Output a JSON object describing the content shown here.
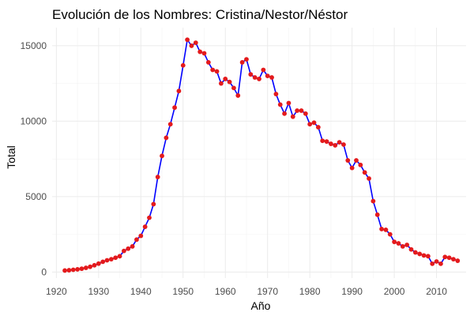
{
  "chart_data": {
    "type": "line",
    "title": "Evolución de los Nombres: Cristina/Nestor/Néstor",
    "xlabel": "Año",
    "ylabel": "Total",
    "xlim": [
      1919,
      2017
    ],
    "ylim": [
      -400,
      16200
    ],
    "x_ticks": [
      1920,
      1930,
      1940,
      1950,
      1960,
      1970,
      1980,
      1990,
      2000,
      2010
    ],
    "y_ticks": [
      0,
      5000,
      10000,
      15000
    ],
    "grid": true,
    "line_color": "#0000ff",
    "point_color": "#e41a1c",
    "series": [
      {
        "x": [
          1922,
          1923,
          1924,
          1925,
          1926,
          1927,
          1928,
          1929,
          1930,
          1931,
          1932,
          1933,
          1934,
          1935,
          1936,
          1937,
          1938,
          1939,
          1940,
          1941,
          1942,
          1943,
          1944,
          1945,
          1946,
          1947,
          1948,
          1949,
          1950,
          1951,
          1952,
          1953,
          1954,
          1955,
          1956,
          1957,
          1958,
          1959,
          1960,
          1961,
          1962,
          1963,
          1964,
          1965,
          1966,
          1967,
          1968,
          1969,
          1970,
          1971,
          1972,
          1973,
          1974,
          1975,
          1976,
          1977,
          1978,
          1979,
          1980,
          1981,
          1982,
          1983,
          1984,
          1985,
          1986,
          1987,
          1988,
          1989,
          1990,
          1991,
          1992,
          1993,
          1994,
          1995,
          1996,
          1997,
          1998,
          1999,
          2000,
          2001,
          2002,
          2003,
          2004,
          2005,
          2006,
          2007,
          2008,
          2009,
          2010,
          2011,
          2012,
          2013,
          2014,
          2015
        ],
        "values": [
          100,
          120,
          150,
          180,
          220,
          280,
          350,
          450,
          560,
          680,
          780,
          850,
          950,
          1050,
          1400,
          1550,
          1700,
          2150,
          2400,
          3000,
          3600,
          4500,
          6300,
          7700,
          8900,
          9800,
          10900,
          12000,
          13700,
          15400,
          15000,
          15200,
          14600,
          14500,
          13900,
          13400,
          13300,
          12500,
          12800,
          12600,
          12200,
          11700,
          13900,
          14100,
          13100,
          12900,
          12800,
          13400,
          13000,
          12900,
          11800,
          11100,
          10500,
          11200,
          10300,
          10700,
          10700,
          10500,
          9800,
          9900,
          9600,
          8700,
          8650,
          8500,
          8400,
          8600,
          8450,
          7400,
          6900,
          7400,
          7100,
          6600,
          6200,
          4700,
          3800,
          2850,
          2800,
          2500,
          2000,
          1900,
          1700,
          1800,
          1500,
          1300,
          1200,
          1100,
          1050,
          550,
          700,
          550,
          1000,
          950,
          850,
          750
        ]
      }
    ]
  }
}
